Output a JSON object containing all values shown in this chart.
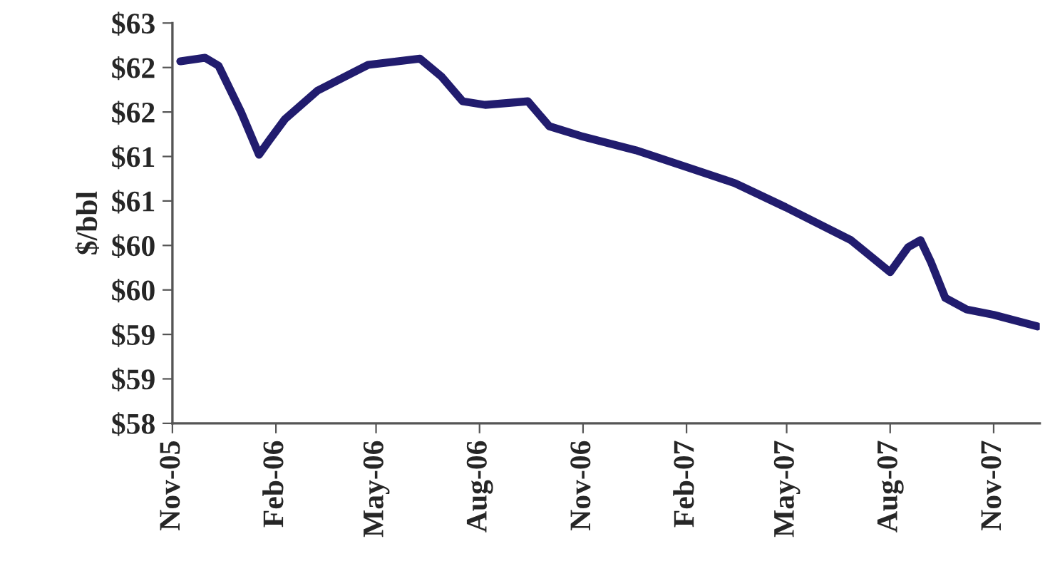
{
  "chart_data": {
    "type": "line",
    "ylabel": "$/bbl",
    "x": [
      "2005-11-08",
      "2005-11-30",
      "2005-12-12",
      "2006-01-01",
      "2006-01-17",
      "2006-01-26",
      "2006-02-09",
      "2006-03-10",
      "2006-04-24",
      "2006-06-09",
      "2006-06-28",
      "2006-07-17",
      "2006-08-06",
      "2006-09-13",
      "2006-10-02",
      "2006-10-30",
      "2006-12-18",
      "2007-01-30",
      "2007-03-16",
      "2007-04-30",
      "2007-06-27",
      "2007-08-01",
      "2007-08-17",
      "2007-08-28",
      "2007-09-06",
      "2007-09-19",
      "2007-10-08",
      "2007-11-01",
      "2007-12-10"
    ],
    "series": [
      {
        "color": "#211c6e",
        "values": [
          62.07,
          62.11,
          62.02,
          61.5,
          61.02,
          61.18,
          61.42,
          61.74,
          62.03,
          62.1,
          61.9,
          61.62,
          61.58,
          61.62,
          61.34,
          61.23,
          61.07,
          60.89,
          60.7,
          60.43,
          60.06,
          59.7,
          59.98,
          60.06,
          59.82,
          59.41,
          59.28,
          59.22,
          59.09
        ]
      }
    ],
    "ylim": [
      58,
      62.5
    ],
    "yticks": [
      {
        "value": 58,
        "label": "$58"
      },
      {
        "value": 58.5,
        "label": "$59"
      },
      {
        "value": 59,
        "label": "$59"
      },
      {
        "value": 59.5,
        "label": "$60"
      },
      {
        "value": 60,
        "label": "$60"
      },
      {
        "value": 60.5,
        "label": "$61"
      },
      {
        "value": 61,
        "label": "$61"
      },
      {
        "value": 61.5,
        "label": "$62"
      },
      {
        "value": 62,
        "label": "$62"
      },
      {
        "value": 62.5,
        "label": "$63"
      }
    ],
    "xlim": [
      "2005-11-01",
      "2007-12-12"
    ],
    "xticks": [
      {
        "value": "2005-11-01",
        "label": "Nov-05"
      },
      {
        "value": "2006-02-01",
        "label": "Feb-06"
      },
      {
        "value": "2006-05-01",
        "label": "May-06"
      },
      {
        "value": "2006-08-01",
        "label": "Aug-06"
      },
      {
        "value": "2006-11-01",
        "label": "Nov-06"
      },
      {
        "value": "2007-02-01",
        "label": "Feb-07"
      },
      {
        "value": "2007-05-01",
        "label": "May-07"
      },
      {
        "value": "2007-08-01",
        "label": "Aug-07"
      },
      {
        "value": "2007-11-01",
        "label": "Nov-07"
      }
    ],
    "grid": false,
    "marker": "none",
    "line_style": "solid"
  }
}
